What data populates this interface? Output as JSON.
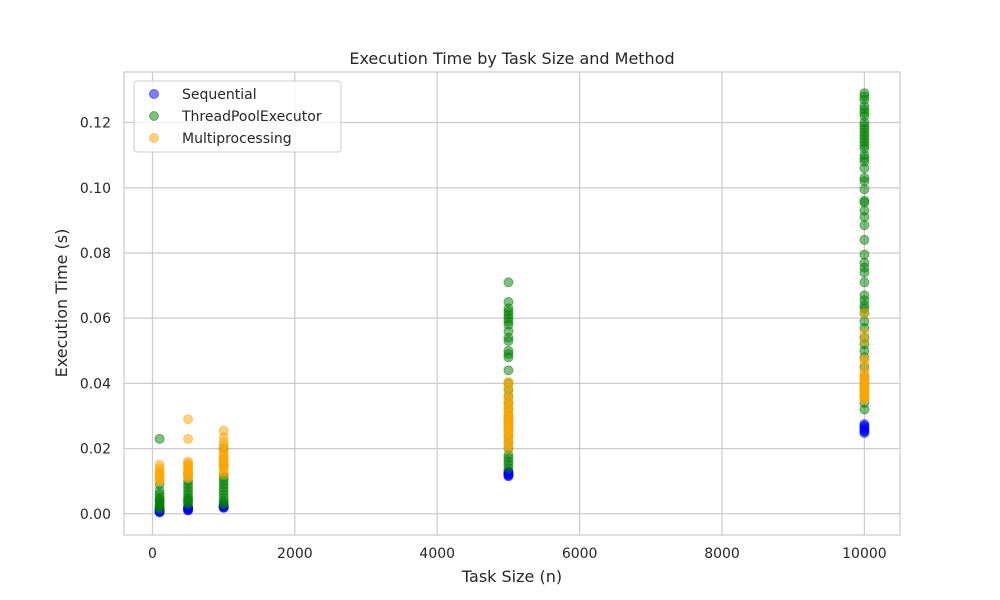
{
  "chart_data": {
    "type": "scatter",
    "title": "Execution Time by Task Size and Method",
    "xlabel": "Task Size (n)",
    "ylabel": "Execution Time (s)",
    "xlim": [
      -400,
      10500
    ],
    "ylim": [
      -0.0065,
      0.1355
    ],
    "xticks": [
      0,
      2000,
      4000,
      6000,
      8000,
      10000
    ],
    "yticks": [
      0.0,
      0.02,
      0.04,
      0.06,
      0.08,
      0.1,
      0.12
    ],
    "xtick_labels": [
      "0",
      "2000",
      "4000",
      "6000",
      "8000",
      "10000"
    ],
    "ytick_labels": [
      "0.00",
      "0.02",
      "0.04",
      "0.06",
      "0.08",
      "0.10",
      "0.12"
    ],
    "grid": true,
    "legend_position": "top-left",
    "series": [
      {
        "name": "Sequential",
        "color": "#0000ff",
        "points": [
          [
            100,
            0.0004
          ],
          [
            100,
            0.0006
          ],
          [
            100,
            0.0008
          ],
          [
            100,
            0.001
          ],
          [
            100,
            0.0012
          ],
          [
            100,
            0.0014
          ],
          [
            100,
            0.0016
          ],
          [
            500,
            0.001
          ],
          [
            500,
            0.0012
          ],
          [
            500,
            0.0014
          ],
          [
            500,
            0.0016
          ],
          [
            500,
            0.0018
          ],
          [
            500,
            0.002
          ],
          [
            1000,
            0.0018
          ],
          [
            1000,
            0.002
          ],
          [
            1000,
            0.0022
          ],
          [
            1000,
            0.0024
          ],
          [
            1000,
            0.0026
          ],
          [
            5000,
            0.0115
          ],
          [
            5000,
            0.0118
          ],
          [
            5000,
            0.012
          ],
          [
            5000,
            0.0122
          ],
          [
            5000,
            0.0125
          ],
          [
            5000,
            0.0128
          ],
          [
            5000,
            0.013
          ],
          [
            10000,
            0.0248
          ],
          [
            10000,
            0.0252
          ],
          [
            10000,
            0.0256
          ],
          [
            10000,
            0.026
          ],
          [
            10000,
            0.0265
          ],
          [
            10000,
            0.027
          ],
          [
            10000,
            0.0275
          ]
        ]
      },
      {
        "name": "ThreadPoolExecutor",
        "color": "#008000",
        "points": [
          [
            100,
            0.023
          ],
          [
            100,
            0.009
          ],
          [
            100,
            0.007
          ],
          [
            100,
            0.006
          ],
          [
            100,
            0.005
          ],
          [
            100,
            0.0045
          ],
          [
            100,
            0.004
          ],
          [
            100,
            0.0035
          ],
          [
            100,
            0.003
          ],
          [
            100,
            0.0025
          ],
          [
            100,
            0.002
          ],
          [
            100,
            0.0015
          ],
          [
            500,
            0.012
          ],
          [
            500,
            0.01
          ],
          [
            500,
            0.009
          ],
          [
            500,
            0.008
          ],
          [
            500,
            0.007
          ],
          [
            500,
            0.006
          ],
          [
            500,
            0.005
          ],
          [
            500,
            0.0045
          ],
          [
            500,
            0.004
          ],
          [
            500,
            0.0035
          ],
          [
            500,
            0.003
          ],
          [
            1000,
            0.02
          ],
          [
            1000,
            0.015
          ],
          [
            1000,
            0.012
          ],
          [
            1000,
            0.011
          ],
          [
            1000,
            0.01
          ],
          [
            1000,
            0.009
          ],
          [
            1000,
            0.008
          ],
          [
            1000,
            0.007
          ],
          [
            1000,
            0.006
          ],
          [
            1000,
            0.005
          ],
          [
            1000,
            0.004
          ],
          [
            1000,
            0.0035
          ],
          [
            1000,
            0.003
          ],
          [
            5000,
            0.071
          ],
          [
            5000,
            0.065
          ],
          [
            5000,
            0.063
          ],
          [
            5000,
            0.062
          ],
          [
            5000,
            0.061
          ],
          [
            5000,
            0.06
          ],
          [
            5000,
            0.059
          ],
          [
            5000,
            0.058
          ],
          [
            5000,
            0.056
          ],
          [
            5000,
            0.054
          ],
          [
            5000,
            0.053
          ],
          [
            5000,
            0.05
          ],
          [
            5000,
            0.049
          ],
          [
            5000,
            0.048
          ],
          [
            5000,
            0.044
          ],
          [
            5000,
            0.04
          ],
          [
            5000,
            0.038
          ],
          [
            5000,
            0.036
          ],
          [
            5000,
            0.034
          ],
          [
            5000,
            0.032
          ],
          [
            5000,
            0.03
          ],
          [
            5000,
            0.028
          ],
          [
            5000,
            0.026
          ],
          [
            5000,
            0.024
          ],
          [
            5000,
            0.022
          ],
          [
            5000,
            0.02
          ],
          [
            5000,
            0.018
          ],
          [
            5000,
            0.017
          ],
          [
            5000,
            0.016
          ],
          [
            5000,
            0.015
          ],
          [
            5000,
            0.014
          ],
          [
            10000,
            0.129
          ],
          [
            10000,
            0.128
          ],
          [
            10000,
            0.127
          ],
          [
            10000,
            0.125
          ],
          [
            10000,
            0.124
          ],
          [
            10000,
            0.123
          ],
          [
            10000,
            0.122
          ],
          [
            10000,
            0.12
          ],
          [
            10000,
            0.119
          ],
          [
            10000,
            0.118
          ],
          [
            10000,
            0.117
          ],
          [
            10000,
            0.116
          ],
          [
            10000,
            0.115
          ],
          [
            10000,
            0.114
          ],
          [
            10000,
            0.113
          ],
          [
            10000,
            0.112
          ],
          [
            10000,
            0.11
          ],
          [
            10000,
            0.109
          ],
          [
            10000,
            0.108
          ],
          [
            10000,
            0.106
          ],
          [
            10000,
            0.103
          ],
          [
            10000,
            0.102
          ],
          [
            10000,
            0.0995
          ],
          [
            10000,
            0.096
          ],
          [
            10000,
            0.0955
          ],
          [
            10000,
            0.093
          ],
          [
            10000,
            0.091
          ],
          [
            10000,
            0.0885
          ],
          [
            10000,
            0.084
          ],
          [
            10000,
            0.0795
          ],
          [
            10000,
            0.077
          ],
          [
            10000,
            0.0755
          ],
          [
            10000,
            0.074
          ],
          [
            10000,
            0.071
          ],
          [
            10000,
            0.067
          ],
          [
            10000,
            0.0655
          ],
          [
            10000,
            0.064
          ],
          [
            10000,
            0.063
          ],
          [
            10000,
            0.0615
          ],
          [
            10000,
            0.059
          ],
          [
            10000,
            0.057
          ],
          [
            10000,
            0.054
          ],
          [
            10000,
            0.052
          ],
          [
            10000,
            0.05
          ],
          [
            10000,
            0.048
          ],
          [
            10000,
            0.045
          ],
          [
            10000,
            0.042
          ],
          [
            10000,
            0.04
          ],
          [
            10000,
            0.038
          ],
          [
            10000,
            0.036
          ],
          [
            10000,
            0.034
          ],
          [
            10000,
            0.032
          ]
        ]
      },
      {
        "name": "Multiprocessing",
        "color": "#ffa500",
        "points": [
          [
            100,
            0.015
          ],
          [
            100,
            0.014
          ],
          [
            100,
            0.013
          ],
          [
            100,
            0.0125
          ],
          [
            100,
            0.012
          ],
          [
            100,
            0.0115
          ],
          [
            100,
            0.011
          ],
          [
            100,
            0.0105
          ],
          [
            100,
            0.01
          ],
          [
            500,
            0.029
          ],
          [
            500,
            0.023
          ],
          [
            500,
            0.016
          ],
          [
            500,
            0.0155
          ],
          [
            500,
            0.015
          ],
          [
            500,
            0.0145
          ],
          [
            500,
            0.014
          ],
          [
            500,
            0.0135
          ],
          [
            500,
            0.013
          ],
          [
            500,
            0.0125
          ],
          [
            500,
            0.012
          ],
          [
            500,
            0.0115
          ],
          [
            500,
            0.011
          ],
          [
            1000,
            0.0255
          ],
          [
            1000,
            0.0235
          ],
          [
            1000,
            0.022
          ],
          [
            1000,
            0.021
          ],
          [
            1000,
            0.02
          ],
          [
            1000,
            0.019
          ],
          [
            1000,
            0.018
          ],
          [
            1000,
            0.0175
          ],
          [
            1000,
            0.017
          ],
          [
            1000,
            0.0165
          ],
          [
            1000,
            0.016
          ],
          [
            1000,
            0.0155
          ],
          [
            1000,
            0.015
          ],
          [
            1000,
            0.0145
          ],
          [
            1000,
            0.014
          ],
          [
            1000,
            0.013
          ],
          [
            1000,
            0.012
          ],
          [
            5000,
            0.0405
          ],
          [
            5000,
            0.0395
          ],
          [
            5000,
            0.038
          ],
          [
            5000,
            0.036
          ],
          [
            5000,
            0.035
          ],
          [
            5000,
            0.034
          ],
          [
            5000,
            0.033
          ],
          [
            5000,
            0.032
          ],
          [
            5000,
            0.031
          ],
          [
            5000,
            0.03
          ],
          [
            5000,
            0.0295
          ],
          [
            5000,
            0.029
          ],
          [
            5000,
            0.0285
          ],
          [
            5000,
            0.028
          ],
          [
            5000,
            0.0275
          ],
          [
            5000,
            0.027
          ],
          [
            5000,
            0.0265
          ],
          [
            5000,
            0.026
          ],
          [
            5000,
            0.0255
          ],
          [
            5000,
            0.025
          ],
          [
            5000,
            0.0245
          ],
          [
            5000,
            0.024
          ],
          [
            5000,
            0.023
          ],
          [
            5000,
            0.022
          ],
          [
            5000,
            0.021
          ],
          [
            5000,
            0.02
          ],
          [
            10000,
            0.0615
          ],
          [
            10000,
            0.0555
          ],
          [
            10000,
            0.053
          ],
          [
            10000,
            0.0475
          ],
          [
            10000,
            0.0465
          ],
          [
            10000,
            0.044
          ],
          [
            10000,
            0.043
          ],
          [
            10000,
            0.042
          ],
          [
            10000,
            0.041
          ],
          [
            10000,
            0.0405
          ],
          [
            10000,
            0.04
          ],
          [
            10000,
            0.0395
          ],
          [
            10000,
            0.039
          ],
          [
            10000,
            0.0385
          ],
          [
            10000,
            0.038
          ],
          [
            10000,
            0.0375
          ],
          [
            10000,
            0.037
          ],
          [
            10000,
            0.0365
          ],
          [
            10000,
            0.036
          ],
          [
            10000,
            0.0355
          ],
          [
            10000,
            0.035
          ]
        ]
      }
    ]
  }
}
